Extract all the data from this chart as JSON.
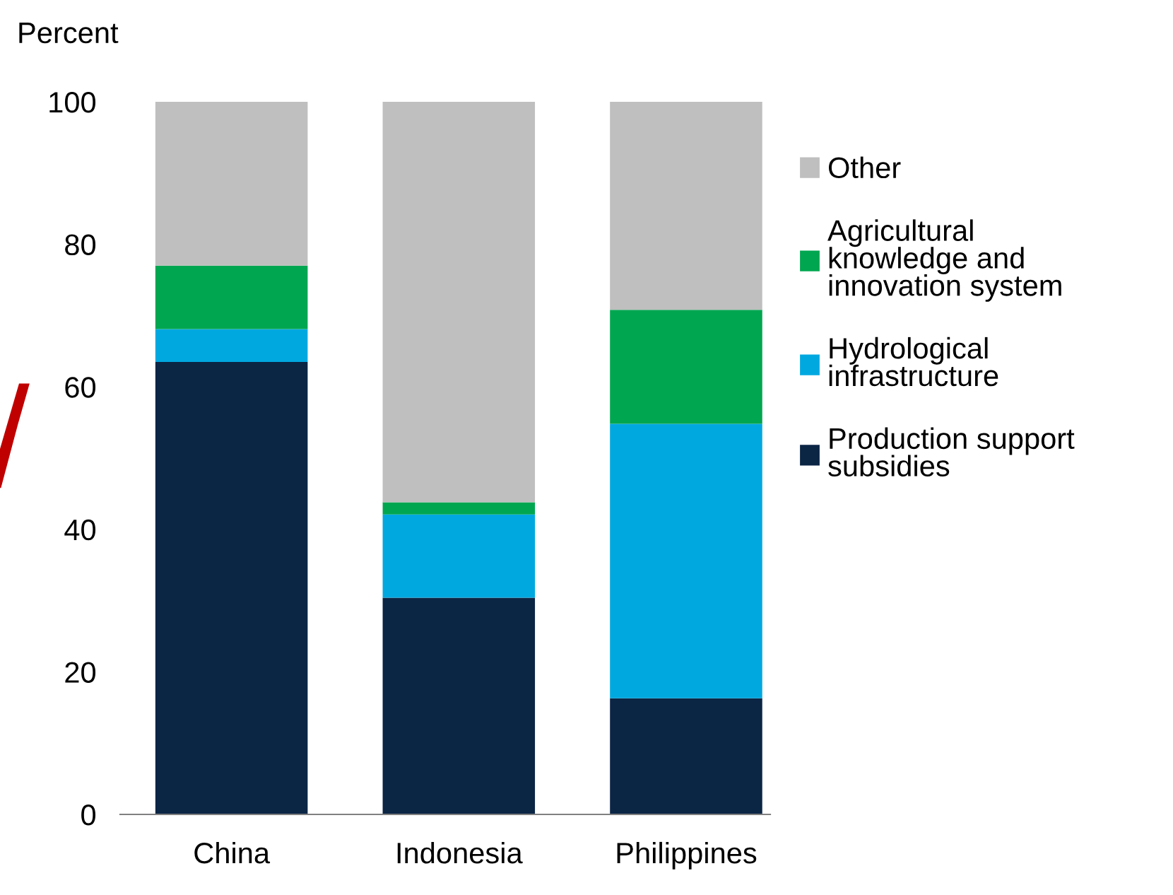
{
  "chart_data": {
    "type": "bar",
    "stacked": true,
    "ylabel": "Percent",
    "categories": [
      "China",
      "Indonesia",
      "Philippines"
    ],
    "series": [
      {
        "name": "Production support subsidies",
        "color": "#0b2545",
        "values": [
          63.5,
          30.4,
          16.3
        ]
      },
      {
        "name": "Hydrological infrastructure",
        "color": "#00a8e0",
        "values": [
          4.6,
          11.7,
          38.5
        ]
      },
      {
        "name": "Agricultural knowledge and innovation system",
        "color": "#00a650",
        "values": [
          8.9,
          1.7,
          16.0
        ]
      },
      {
        "name": "Other",
        "color": "#bfbfbf",
        "values": [
          23.0,
          56.2,
          29.2
        ]
      }
    ],
    "ylim": [
      0,
      100
    ],
    "yticks": [
      0,
      20,
      40,
      60,
      80,
      100
    ],
    "grid": false,
    "legend": "right"
  }
}
